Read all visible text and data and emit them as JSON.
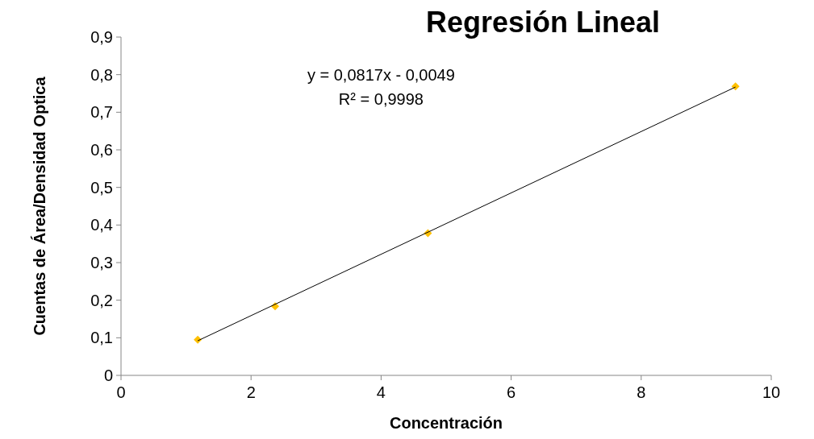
{
  "chart_data": {
    "type": "scatter",
    "title": "Regresión Lineal",
    "xlabel": "Concentración",
    "ylabel": "Cuentas de Área/Densidad Optica",
    "xlim": [
      0,
      10
    ],
    "xticks": [
      0,
      2,
      4,
      6,
      8,
      10
    ],
    "ylim": [
      0,
      0.9
    ],
    "yticks": [
      {
        "value": 0,
        "label": "0"
      },
      {
        "value": 0.1,
        "label": "0,1"
      },
      {
        "value": 0.2,
        "label": "0,2"
      },
      {
        "value": 0.3,
        "label": "0,3"
      },
      {
        "value": 0.4,
        "label": "0,4"
      },
      {
        "value": 0.5,
        "label": "0,5"
      },
      {
        "value": 0.6,
        "label": "0,6"
      },
      {
        "value": 0.7,
        "label": "0,7"
      },
      {
        "value": 0.8,
        "label": "0,8"
      },
      {
        "value": 0.9,
        "label": "0,9"
      }
    ],
    "grid": false,
    "marker": "diamond",
    "series": [
      {
        "color": "#ffc000",
        "x": [
          1.18,
          2.37,
          4.72,
          9.45
        ],
        "values": [
          0.095,
          0.184,
          0.378,
          0.769
        ]
      },
      {
        "type": "line",
        "color": "#000000",
        "marker": "none",
        "x": [
          1.18,
          9.45
        ],
        "values": [
          0.092,
          0.767
        ]
      }
    ],
    "annotations": [
      "y = 0,0817x - 0,0049",
      "R² = 0,9998"
    ]
  }
}
